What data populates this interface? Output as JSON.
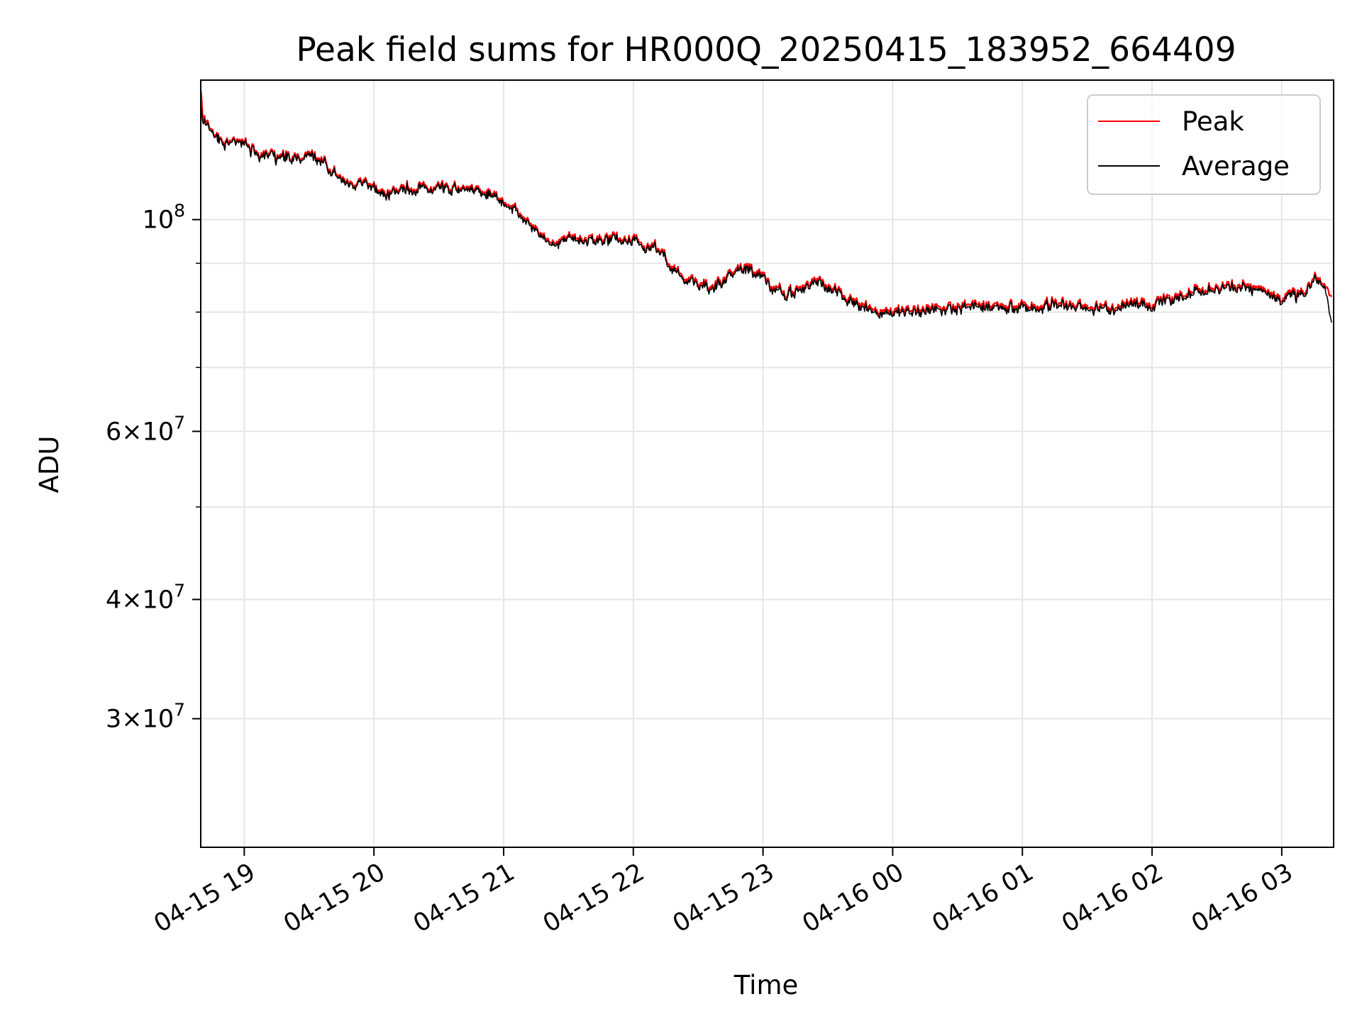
{
  "chart_data": {
    "type": "line",
    "title": "Peak field sums for HR000Q_20250415_183952_664409",
    "xlabel": "Time",
    "ylabel": "ADU",
    "yscale": "log",
    "ylim": [
      22000000,
      140000000
    ],
    "xlim": [
      "2025-04-15 18:39:52",
      "2025-04-16 03:24:00"
    ],
    "x_ticks": [
      {
        "t": "2025-04-15 19:00",
        "label": "04-15 19"
      },
      {
        "t": "2025-04-15 20:00",
        "label": "04-15 20"
      },
      {
        "t": "2025-04-15 21:00",
        "label": "04-15 21"
      },
      {
        "t": "2025-04-15 22:00",
        "label": "04-15 22"
      },
      {
        "t": "2025-04-15 23:00",
        "label": "04-15 23"
      },
      {
        "t": "2025-04-16 00:00",
        "label": "04-16 00"
      },
      {
        "t": "2025-04-16 01:00",
        "label": "04-16 01"
      },
      {
        "t": "2025-04-16 02:00",
        "label": "04-16 02"
      },
      {
        "t": "2025-04-16 03:00",
        "label": "04-16 03"
      }
    ],
    "y_ticks_major": [
      {
        "value": 30000000,
        "mantissa": "3",
        "exponent": "7"
      },
      {
        "value": 40000000,
        "mantissa": "4",
        "exponent": "7"
      },
      {
        "value": 60000000,
        "mantissa": "6",
        "exponent": "7"
      },
      {
        "value": 100000000,
        "mantissa": "",
        "exponent": "8"
      }
    ],
    "y_ticks_minor": [
      50000000,
      70000000,
      80000000,
      90000000
    ],
    "grid": true,
    "legend": {
      "position": "top-right"
    },
    "series": [
      {
        "name": "Peak",
        "color": "#ff0000",
        "points": [
          [
            "2025-04-15 18:40",
            135000000
          ],
          [
            "2025-04-15 18:41",
            127000000
          ],
          [
            "2025-04-15 18:45",
            124000000
          ],
          [
            "2025-04-15 18:50",
            121000000
          ],
          [
            "2025-04-15 19:00",
            120000000
          ],
          [
            "2025-04-15 19:05",
            118000000
          ],
          [
            "2025-04-15 19:10",
            117000000
          ],
          [
            "2025-04-15 19:15",
            116000000
          ],
          [
            "2025-04-15 19:20",
            117000000
          ],
          [
            "2025-04-15 19:25",
            116000000
          ],
          [
            "2025-04-15 19:30",
            117000000
          ],
          [
            "2025-04-15 19:35",
            116000000
          ],
          [
            "2025-04-15 19:40",
            114000000
          ],
          [
            "2025-04-15 19:45",
            110000000
          ],
          [
            "2025-04-15 19:50",
            108500000
          ],
          [
            "2025-04-15 19:55",
            109000000
          ],
          [
            "2025-04-15 20:00",
            108000000
          ],
          [
            "2025-04-15 20:05",
            106500000
          ],
          [
            "2025-04-15 20:10",
            107500000
          ],
          [
            "2025-04-15 20:15",
            108000000
          ],
          [
            "2025-04-15 20:20",
            108500000
          ],
          [
            "2025-04-15 20:30",
            108500000
          ],
          [
            "2025-04-15 20:40",
            108000000
          ],
          [
            "2025-04-15 20:50",
            107500000
          ],
          [
            "2025-04-15 20:55",
            106000000
          ],
          [
            "2025-04-15 21:00",
            104000000
          ],
          [
            "2025-04-15 21:05",
            102500000
          ],
          [
            "2025-04-15 21:10",
            101000000
          ],
          [
            "2025-04-15 21:15",
            97500000
          ],
          [
            "2025-04-15 21:20",
            95500000
          ],
          [
            "2025-04-15 21:25",
            95000000
          ],
          [
            "2025-04-15 21:30",
            95500000
          ],
          [
            "2025-04-15 21:40",
            95500000
          ],
          [
            "2025-04-15 21:50",
            95500000
          ],
          [
            "2025-04-15 22:00",
            95000000
          ],
          [
            "2025-04-15 22:05",
            94500000
          ],
          [
            "2025-04-15 22:10",
            94000000
          ],
          [
            "2025-04-15 22:15",
            91500000
          ],
          [
            "2025-04-15 22:20",
            88500000
          ],
          [
            "2025-04-15 22:25",
            87000000
          ],
          [
            "2025-04-15 22:30",
            86000000
          ],
          [
            "2025-04-15 22:35",
            85500000
          ],
          [
            "2025-04-15 22:40",
            86500000
          ],
          [
            "2025-04-15 22:45",
            88000000
          ],
          [
            "2025-04-15 22:50",
            88500000
          ],
          [
            "2025-04-15 22:55",
            89000000
          ],
          [
            "2025-04-15 23:00",
            87500000
          ],
          [
            "2025-04-15 23:05",
            85000000
          ],
          [
            "2025-04-15 23:10",
            83500000
          ],
          [
            "2025-04-15 23:15",
            84500000
          ],
          [
            "2025-04-15 23:20",
            85500000
          ],
          [
            "2025-04-15 23:25",
            86500000
          ],
          [
            "2025-04-15 23:30",
            85000000
          ],
          [
            "2025-04-15 23:35",
            84000000
          ],
          [
            "2025-04-15 23:40",
            83000000
          ],
          [
            "2025-04-15 23:45",
            81500000
          ],
          [
            "2025-04-15 23:50",
            80500000
          ],
          [
            "2025-04-16 00:00",
            80000000
          ],
          [
            "2025-04-16 00:10",
            80500000
          ],
          [
            "2025-04-16 00:20",
            81000000
          ],
          [
            "2025-04-16 00:30",
            81000000
          ],
          [
            "2025-04-16 00:40",
            81500000
          ],
          [
            "2025-04-16 00:50",
            81500000
          ],
          [
            "2025-04-16 01:00",
            81000000
          ],
          [
            "2025-04-16 01:10",
            81500000
          ],
          [
            "2025-04-16 01:20",
            82000000
          ],
          [
            "2025-04-16 01:30",
            81500000
          ],
          [
            "2025-04-16 01:40",
            81000000
          ],
          [
            "2025-04-16 01:50",
            81500000
          ],
          [
            "2025-04-16 02:00",
            82000000
          ],
          [
            "2025-04-16 02:10",
            83000000
          ],
          [
            "2025-04-16 02:20",
            84500000
          ],
          [
            "2025-04-16 02:30",
            85000000
          ],
          [
            "2025-04-16 02:40",
            85500000
          ],
          [
            "2025-04-16 02:50",
            84500000
          ],
          [
            "2025-04-16 03:00",
            83000000
          ],
          [
            "2025-04-16 03:10",
            84000000
          ],
          [
            "2025-04-16 03:15",
            87000000
          ],
          [
            "2025-04-16 03:20",
            86000000
          ],
          [
            "2025-04-16 03:23",
            83000000
          ]
        ]
      },
      {
        "name": "Average",
        "color": "#000000",
        "points": [
          [
            "2025-04-15 18:40",
            130000000
          ],
          [
            "2025-04-15 18:41",
            126000000
          ],
          [
            "2025-04-15 18:45",
            123500000
          ],
          [
            "2025-04-15 18:50",
            120500000
          ],
          [
            "2025-04-15 19:00",
            119500000
          ],
          [
            "2025-04-15 19:05",
            117500000
          ],
          [
            "2025-04-15 19:10",
            116500000
          ],
          [
            "2025-04-15 19:15",
            115500000
          ],
          [
            "2025-04-15 19:20",
            116500000
          ],
          [
            "2025-04-15 19:25",
            115500000
          ],
          [
            "2025-04-15 19:30",
            116500000
          ],
          [
            "2025-04-15 19:35",
            115500000
          ],
          [
            "2025-04-15 19:40",
            113500000
          ],
          [
            "2025-04-15 19:45",
            109500000
          ],
          [
            "2025-04-15 19:50",
            108000000
          ],
          [
            "2025-04-15 19:55",
            108500000
          ],
          [
            "2025-04-15 20:00",
            107500000
          ],
          [
            "2025-04-15 20:05",
            106000000
          ],
          [
            "2025-04-15 20:10",
            107000000
          ],
          [
            "2025-04-15 20:15",
            107500000
          ],
          [
            "2025-04-15 20:20",
            108000000
          ],
          [
            "2025-04-15 20:30",
            108000000
          ],
          [
            "2025-04-15 20:40",
            107500000
          ],
          [
            "2025-04-15 20:50",
            107000000
          ],
          [
            "2025-04-15 20:55",
            105500000
          ],
          [
            "2025-04-15 21:00",
            103500000
          ],
          [
            "2025-04-15 21:05",
            102000000
          ],
          [
            "2025-04-15 21:10",
            100500000
          ],
          [
            "2025-04-15 21:15",
            97000000
          ],
          [
            "2025-04-15 21:20",
            95000000
          ],
          [
            "2025-04-15 21:25",
            94500000
          ],
          [
            "2025-04-15 21:30",
            95000000
          ],
          [
            "2025-04-15 21:40",
            95000000
          ],
          [
            "2025-04-15 21:50",
            95000000
          ],
          [
            "2025-04-15 22:00",
            94500000
          ],
          [
            "2025-04-15 22:05",
            94000000
          ],
          [
            "2025-04-15 22:10",
            93500000
          ],
          [
            "2025-04-15 22:15",
            91000000
          ],
          [
            "2025-04-15 22:20",
            88000000
          ],
          [
            "2025-04-15 22:25",
            86500000
          ],
          [
            "2025-04-15 22:30",
            85500000
          ],
          [
            "2025-04-15 22:35",
            85000000
          ],
          [
            "2025-04-15 22:40",
            86000000
          ],
          [
            "2025-04-15 22:45",
            87500000
          ],
          [
            "2025-04-15 22:50",
            88000000
          ],
          [
            "2025-04-15 22:55",
            88500000
          ],
          [
            "2025-04-15 23:00",
            87000000
          ],
          [
            "2025-04-15 23:05",
            84500000
          ],
          [
            "2025-04-15 23:10",
            83000000
          ],
          [
            "2025-04-15 23:15",
            84000000
          ],
          [
            "2025-04-15 23:20",
            85000000
          ],
          [
            "2025-04-15 23:25",
            86000000
          ],
          [
            "2025-04-15 23:30",
            84500000
          ],
          [
            "2025-04-15 23:35",
            83500000
          ],
          [
            "2025-04-15 23:40",
            82500000
          ],
          [
            "2025-04-15 23:45",
            81000000
          ],
          [
            "2025-04-15 23:50",
            80000000
          ],
          [
            "2025-04-16 00:00",
            79500000
          ],
          [
            "2025-04-16 00:10",
            80000000
          ],
          [
            "2025-04-16 00:20",
            80500000
          ],
          [
            "2025-04-16 00:30",
            80500000
          ],
          [
            "2025-04-16 00:40",
            81000000
          ],
          [
            "2025-04-16 00:50",
            81000000
          ],
          [
            "2025-04-16 01:00",
            80500000
          ],
          [
            "2025-04-16 01:10",
            81000000
          ],
          [
            "2025-04-16 01:20",
            81500000
          ],
          [
            "2025-04-16 01:30",
            81000000
          ],
          [
            "2025-04-16 01:40",
            80500000
          ],
          [
            "2025-04-16 01:50",
            81000000
          ],
          [
            "2025-04-16 02:00",
            81500000
          ],
          [
            "2025-04-16 02:10",
            82500000
          ],
          [
            "2025-04-16 02:20",
            84000000
          ],
          [
            "2025-04-16 02:30",
            84500000
          ],
          [
            "2025-04-16 02:40",
            85000000
          ],
          [
            "2025-04-16 02:50",
            84000000
          ],
          [
            "2025-04-16 03:00",
            82500000
          ],
          [
            "2025-04-16 03:10",
            83500000
          ],
          [
            "2025-04-16 03:15",
            86500000
          ],
          [
            "2025-04-16 03:20",
            85500000
          ],
          [
            "2025-04-16 03:23",
            78000000
          ]
        ]
      }
    ]
  }
}
